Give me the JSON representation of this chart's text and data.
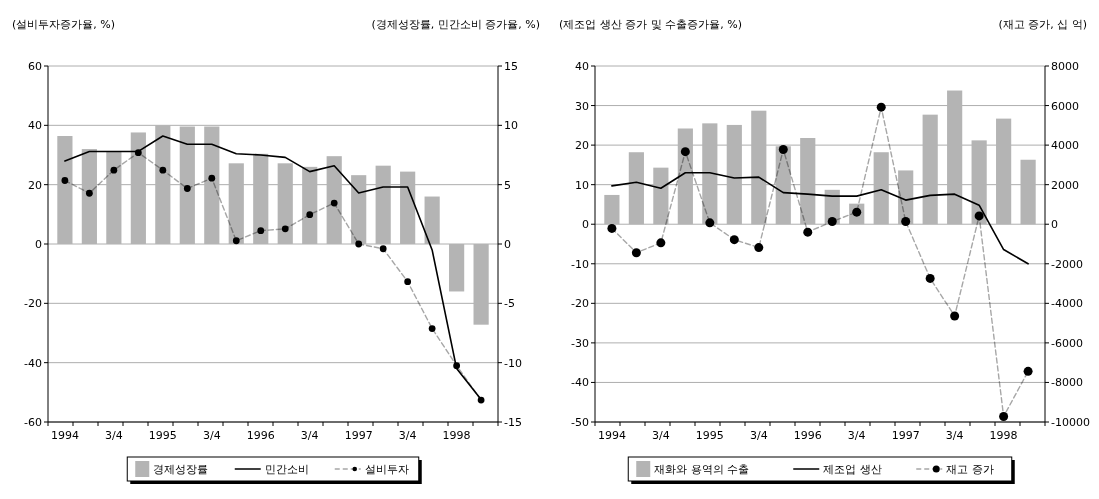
{
  "chart_data": [
    {
      "type": "bar",
      "ylabel": "(설비투자증가율, %)",
      "y2label": "(경제성장률, 민간소비 증가율, %)",
      "categories": [
        "1994",
        null,
        "3/4",
        null,
        "1995",
        null,
        "3/4",
        null,
        "1996",
        null,
        "3/4",
        null,
        "1997",
        null,
        "3/4",
        null,
        "1998",
        null
      ],
      "series": [
        {
          "name": "경제성장률",
          "axis": "y2",
          "color": "#b4b4b4",
          "values": [
            9.1,
            8.0,
            7.8,
            9.4,
            10.0,
            9.9,
            9.9,
            6.8,
            7.6,
            6.8,
            6.5,
            7.4,
            5.8,
            6.6,
            6.1,
            4.0,
            -4.0,
            -6.8
          ]
        },
        {
          "name": "민간소비",
          "type": "line",
          "axis": "y2",
          "color": "#000000",
          "line_style": "solid",
          "marker": "none",
          "values": [
            7.0,
            7.8,
            7.8,
            7.8,
            9.1,
            8.4,
            8.4,
            7.6,
            7.5,
            7.3,
            6.1,
            6.6,
            4.3,
            4.8,
            4.8,
            -0.5,
            -10.5,
            -13.1
          ]
        },
        {
          "name": "설비투자",
          "type": "line",
          "color": "#000000",
          "line_style": "dashed",
          "marker": "circle",
          "values": [
            21.4,
            17.1,
            24.9,
            30.8,
            24.9,
            18.7,
            22.2,
            1.1,
            4.5,
            5.1,
            9.9,
            13.8,
            0.0,
            -1.6,
            -12.7,
            -28.5,
            -41,
            -52.6
          ]
        }
      ],
      "ylim": [
        -60,
        60
      ],
      "yticks": [
        -60,
        -40,
        -20,
        0,
        20,
        40,
        60
      ],
      "y2lim": [
        -15,
        15
      ],
      "y2ticks": [
        -15,
        -10,
        -5,
        0,
        5,
        10,
        15
      ],
      "grid": "y",
      "legend": "bottom"
    },
    {
      "type": "bar",
      "ylabel": "(제조업 생산 증가 및 수출증가율, %)",
      "y2label": "(재고 증가, 십 억)",
      "categories": [
        "1994",
        null,
        "3/4",
        null,
        "1995",
        null,
        "3/4",
        null,
        "1996",
        null,
        "3/4",
        null,
        "1997",
        null,
        "3/4",
        null,
        "1998",
        null
      ],
      "series": [
        {
          "name": "재화와 용역의 수출",
          "color": "#b4b4b4",
          "values": [
            7.4,
            18.2,
            14.3,
            24.2,
            25.5,
            25.1,
            28.7,
            19.7,
            21.8,
            8.7,
            5.2,
            18.2,
            13.6,
            27.7,
            33.8,
            21.2,
            26.7,
            16.3
          ]
        },
        {
          "name": "제조업 생산",
          "type": "line",
          "color": "#000000",
          "line_style": "solid",
          "marker": "none",
          "values": [
            9.7,
            10.6,
            9.1,
            13.0,
            13.0,
            11.7,
            11.9,
            8.0,
            7.6,
            7.1,
            7.1,
            8.7,
            6.1,
            7.3,
            7.6,
            4.8,
            -6.4,
            -10.0
          ]
        },
        {
          "name": "재고 증가",
          "type": "line",
          "axis": "y2",
          "color": "#000000",
          "line_style": "dashed",
          "marker": "circle",
          "values": [
            -210,
            -1440,
            -940,
            3670,
            70,
            -780,
            -1180,
            3780,
            -400,
            140,
            610,
            5920,
            140,
            -2740,
            -4640,
            420,
            -9720,
            -7440
          ]
        }
      ],
      "ylim": [
        -50,
        40
      ],
      "yticks": [
        -50,
        -40,
        -30,
        -20,
        -10,
        0,
        10,
        20,
        30,
        40
      ],
      "y2lim": [
        -10000,
        8000
      ],
      "y2ticks": [
        -10000,
        -8000,
        -6000,
        -4000,
        -2000,
        0,
        2000,
        4000,
        6000,
        8000
      ],
      "grid": "y",
      "legend": "bottom"
    }
  ]
}
